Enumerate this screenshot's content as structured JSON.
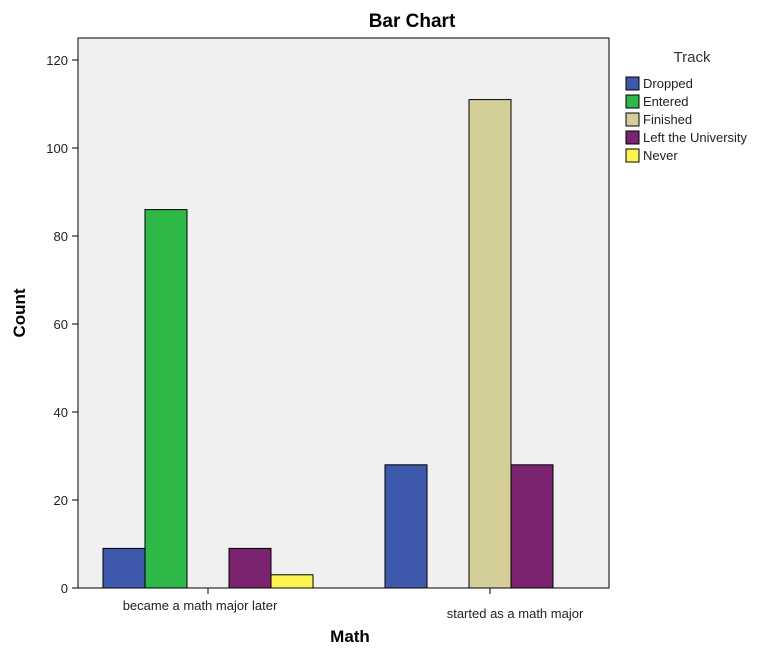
{
  "chart_data": {
    "type": "bar",
    "title": "Bar Chart",
    "xlabel": "Math",
    "ylabel": "Count",
    "categories": [
      "became a math major later",
      "started as a math major"
    ],
    "ylim": [
      0,
      125
    ],
    "yticks": [
      0,
      20,
      40,
      60,
      80,
      100,
      120
    ],
    "grid": false,
    "legend_title": "Track",
    "legend_position": "right",
    "series": [
      {
        "name": "Dropped",
        "color": "#3e58ac",
        "values": [
          9,
          28
        ]
      },
      {
        "name": "Entered",
        "color": "#2eb848",
        "values": [
          86,
          0
        ]
      },
      {
        "name": "Finished",
        "color": "#d4cf99",
        "values": [
          0,
          111
        ]
      },
      {
        "name": "Left the University",
        "color": "#7b2370",
        "values": [
          9,
          28
        ]
      },
      {
        "name": "Never",
        "color": "#fbf34f",
        "values": [
          3,
          0
        ]
      }
    ],
    "plot_background": "#f0f0f0"
  }
}
